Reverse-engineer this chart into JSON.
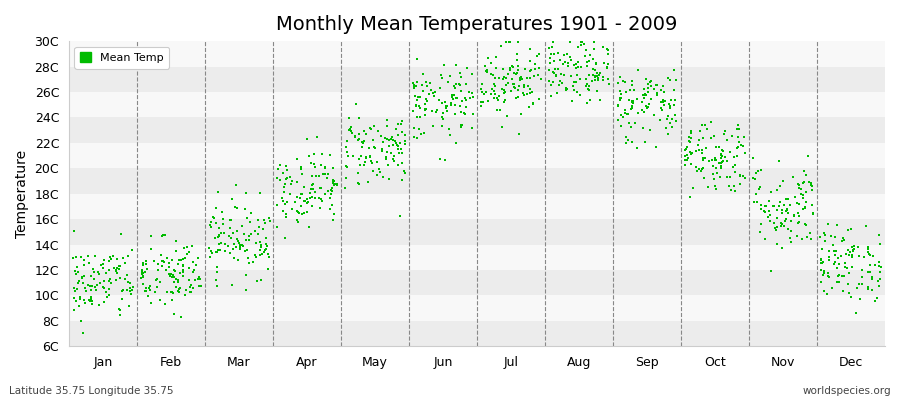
{
  "title": "Monthly Mean Temperatures 1901 - 2009",
  "ylabel": "Temperature",
  "legend_label": "Mean Temp",
  "bottom_left_text": "Latitude 35.75 Longitude 35.75",
  "bottom_right_text": "worldspecies.org",
  "dot_color": "#00bb00",
  "background_color": "#ffffff",
  "plot_bg_color": "#ffffff",
  "band_colors": [
    "#ececec",
    "#f8f8f8"
  ],
  "ylim": [
    6,
    30
  ],
  "yticks": [
    6,
    8,
    10,
    12,
    14,
    16,
    18,
    20,
    22,
    24,
    26,
    28,
    30
  ],
  "ytick_labels": [
    "6C",
    "8C",
    "10C",
    "12C",
    "14C",
    "16C",
    "18C",
    "20C",
    "22C",
    "24C",
    "26C",
    "28C",
    "30C"
  ],
  "months": [
    "Jan",
    "Feb",
    "Mar",
    "Apr",
    "May",
    "Jun",
    "Jul",
    "Aug",
    "Sep",
    "Oct",
    "Nov",
    "Dec"
  ],
  "monthly_means": [
    11.0,
    11.5,
    14.5,
    18.5,
    21.5,
    25.0,
    27.0,
    27.5,
    25.0,
    21.0,
    17.0,
    12.5
  ],
  "monthly_stds": [
    1.5,
    1.5,
    1.5,
    1.5,
    1.5,
    1.5,
    1.5,
    1.2,
    1.5,
    1.5,
    1.8,
    1.5
  ],
  "n_years": 109,
  "seed": 42,
  "vline_color": "#888888",
  "title_fontsize": 14,
  "tick_fontsize": 9,
  "dot_size": 4
}
